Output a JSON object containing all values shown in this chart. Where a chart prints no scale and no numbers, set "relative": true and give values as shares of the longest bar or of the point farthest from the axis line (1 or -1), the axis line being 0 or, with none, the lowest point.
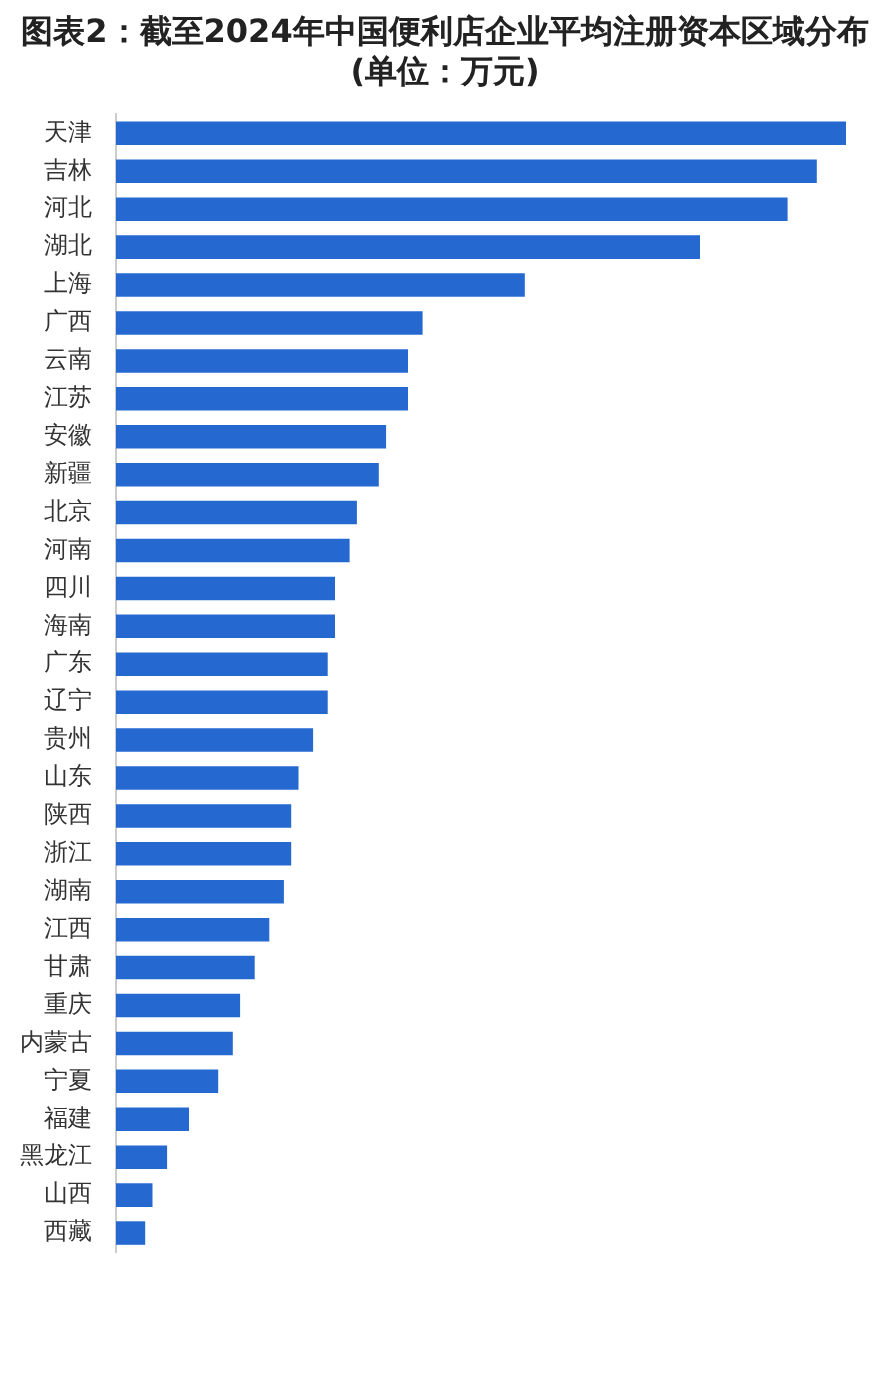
{
  "chart_data": {
    "type": "bar",
    "orientation": "horizontal",
    "relative": true,
    "title": "图表2：截至2024年中国便利店企业平均注册资本区域分布(单位：万元)",
    "categories": [
      "天津",
      "吉林",
      "河北",
      "湖北",
      "上海",
      "广西",
      "云南",
      "江苏",
      "安徽",
      "新疆",
      "北京",
      "河南",
      "四川",
      "海南",
      "广东",
      "辽宁",
      "贵州",
      "山东",
      "陕西",
      "浙江",
      "湖南",
      "江西",
      "甘肃",
      "重庆",
      "内蒙古",
      "宁夏",
      "福建",
      "黑龙江",
      "山西",
      "西藏"
    ],
    "values": [
      1,
      0.96,
      0.92,
      0.8,
      0.56,
      0.42,
      0.4,
      0.4,
      0.37,
      0.36,
      0.33,
      0.32,
      0.3,
      0.3,
      0.29,
      0.29,
      0.27,
      0.25,
      0.24,
      0.24,
      0.23,
      0.21,
      0.19,
      0.17,
      0.16,
      0.14,
      0.1,
      0.07,
      0.05,
      0.04
    ],
    "color": "#2468d0"
  }
}
